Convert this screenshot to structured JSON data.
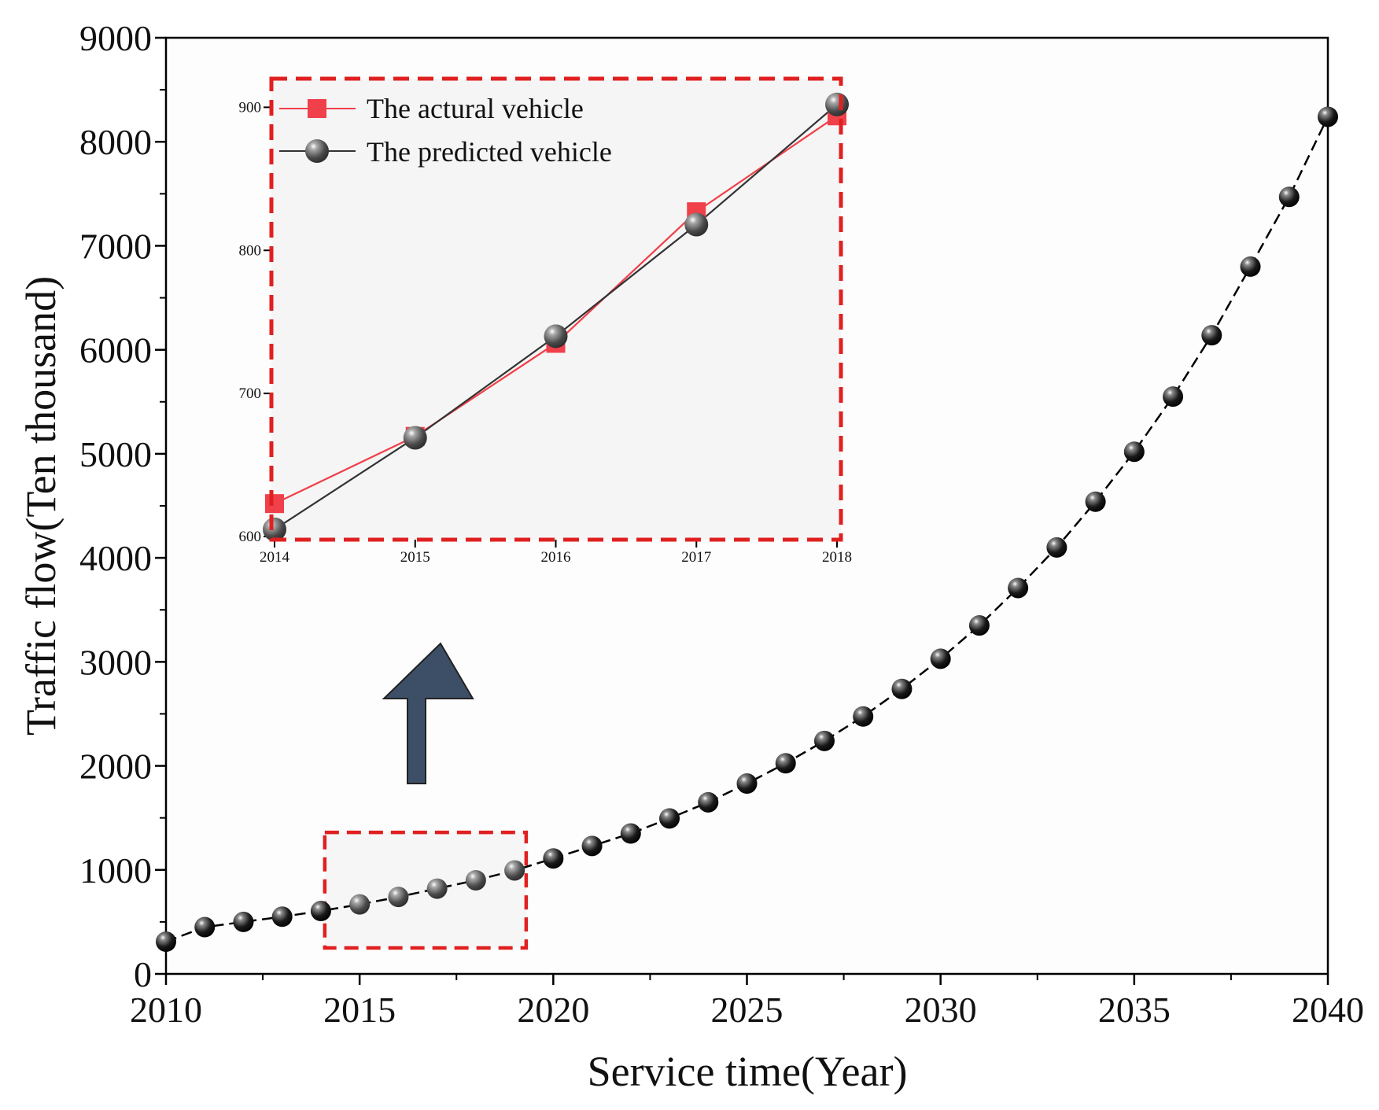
{
  "chart_data": [
    {
      "type": "line",
      "name": "main",
      "title": "",
      "xlabel": "Service time(Year)",
      "ylabel": "Traffic flow(Ten thousand)",
      "xlim": [
        2010,
        2040
      ],
      "ylim": [
        0,
        9000
      ],
      "xticks": [
        2010,
        2015,
        2020,
        2025,
        2030,
        2035,
        2040
      ],
      "yticks": [
        0,
        1000,
        2000,
        3000,
        4000,
        5000,
        6000,
        7000,
        8000,
        9000
      ],
      "series": [
        {
          "name": "Traffic flow",
          "color": "#000000",
          "x": [
            2010,
            2011,
            2012,
            2013,
            2014,
            2015,
            2016,
            2017,
            2018,
            2019,
            2020,
            2021,
            2022,
            2023,
            2024,
            2025,
            2026,
            2027,
            2028,
            2029,
            2030,
            2031,
            2032,
            2033,
            2034,
            2035,
            2036,
            2037,
            2038,
            2039,
            2040
          ],
          "values": [
            310,
            450,
            500,
            550,
            605,
            668,
            740,
            820,
            900,
            995,
            1110,
            1230,
            1350,
            1495,
            1650,
            1830,
            2025,
            2240,
            2475,
            2740,
            3030,
            3350,
            3710,
            4100,
            4540,
            5020,
            5550,
            6140,
            6800,
            7470,
            8240
          ]
        }
      ],
      "highlight_box": {
        "x_range": [
          2014.1,
          2019.3
        ],
        "y_range": [
          250,
          1360
        ],
        "color": "#e02020"
      },
      "arrow": {
        "direction": "up",
        "color": "#3d4f66"
      }
    },
    {
      "type": "line",
      "name": "inset",
      "title": "",
      "xlabel": "",
      "ylabel": "",
      "xlim": [
        2014,
        2018
      ],
      "ylim": [
        600,
        920
      ],
      "xticks": [
        2014,
        2015,
        2016,
        2017,
        2018
      ],
      "yticks": [
        600,
        700,
        800,
        900
      ],
      "legend_position": "top-left",
      "series": [
        {
          "name": "The actural vehicle",
          "color": "#f0404a",
          "marker": "square",
          "x": [
            2014,
            2015,
            2016,
            2017,
            2018
          ],
          "values": [
            623,
            670,
            735,
            827,
            894
          ]
        },
        {
          "name": "The predicted vehicle",
          "color": "#333333",
          "marker": "sphere",
          "x": [
            2014,
            2015,
            2016,
            2017,
            2018
          ],
          "values": [
            605,
            669,
            740,
            818,
            902
          ]
        }
      ]
    }
  ]
}
